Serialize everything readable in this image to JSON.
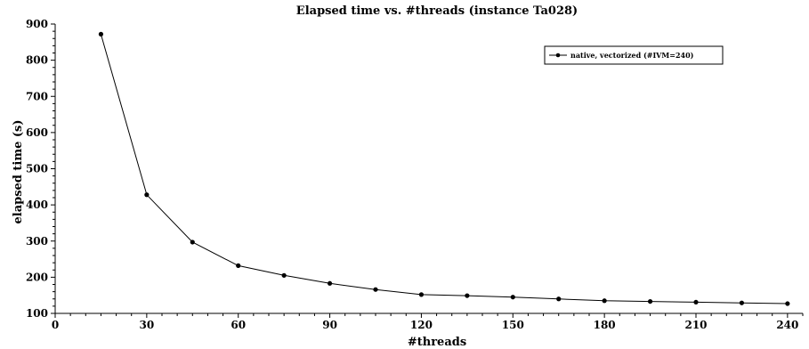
{
  "chart_data": {
    "type": "line",
    "title": "Elapsed time vs. #threads (instance Ta028)",
    "xlabel": "#threads",
    "ylabel": "elapsed time (s)",
    "xlim": [
      0,
      245
    ],
    "ylim": [
      100,
      900
    ],
    "xticks": [
      0,
      30,
      60,
      90,
      120,
      150,
      180,
      210,
      240
    ],
    "yticks": [
      100,
      200,
      300,
      400,
      500,
      600,
      700,
      800,
      900
    ],
    "grid": false,
    "legend_position": "top-right",
    "series": [
      {
        "name": "native, vectorized (#IVM=240)",
        "color": "#000000",
        "marker": "circle",
        "x": [
          15,
          30,
          45,
          60,
          75,
          90,
          105,
          120,
          135,
          150,
          165,
          180,
          195,
          210,
          225,
          240
        ],
        "y": [
          872,
          428,
          297,
          232,
          205,
          183,
          166,
          152,
          149,
          145,
          140,
          135,
          133,
          131,
          129,
          127
        ]
      }
    ]
  }
}
